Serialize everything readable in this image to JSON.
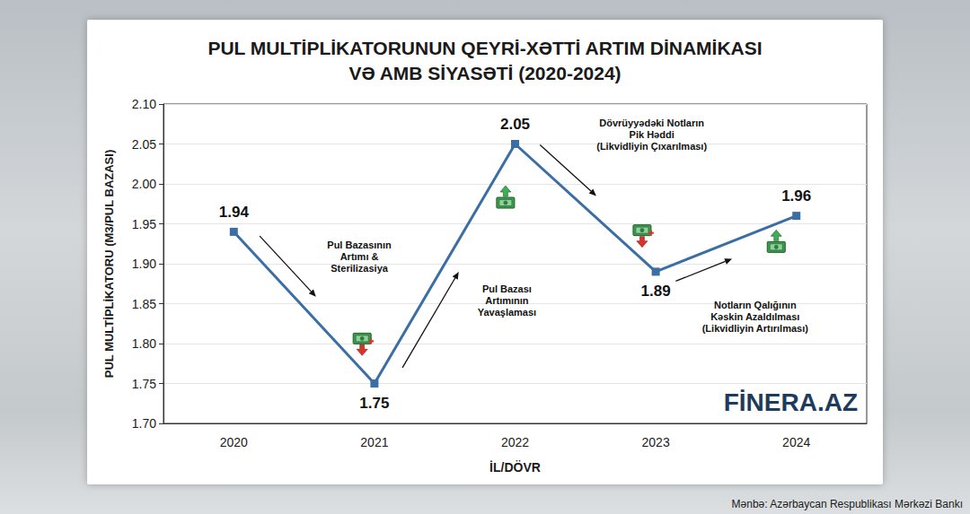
{
  "chart_data": {
    "type": "line",
    "title": "PUL MULTİPLİKATORUNUN QEYRİ-XƏTTİ ARTIM DİNAMİKASI\nVƏ AMB SİYASƏTİ (2020-2024)",
    "x_label": "İL/DÖVR",
    "y_label": "PUL MULTİPLİKATORU (M3/PUL BAZASI)",
    "categories": [
      "2020",
      "2021",
      "2022",
      "2023",
      "2024"
    ],
    "values": [
      1.94,
      1.75,
      2.05,
      1.89,
      1.96
    ],
    "color": "#3a6ea5",
    "marker": "square",
    "data_labels": true,
    "ylim": [
      1.7,
      2.1
    ],
    "yticks": [
      {
        "value": 1.7,
        "label": "1.70"
      },
      1.75,
      {
        "value": 1.8,
        "label": "1.80"
      },
      1.85,
      {
        "value": 1.9,
        "label": "1.90"
      },
      1.95,
      {
        "value": 2.0,
        "label": "2.00"
      },
      2.05,
      {
        "value": 2.1,
        "label": "2.10"
      }
    ],
    "grid": true,
    "annotations": [
      {
        "text": "Pul Bazasının\nArtımı &\nSterilizasiya",
        "category": "2020"
      },
      {
        "text": "Pul Bazası\nArtımının\nYavaşlaması",
        "category": "2021"
      },
      {
        "text": "Dövrüyyədəki Notların\nPik Həddi\n(Likvidliyin Çıxarılması)",
        "category": "2022"
      },
      {
        "text": "Notların Qalığının\nKəskin Azaldılması\n(Likvidliyin Artırılması)",
        "category": "2023"
      }
    ],
    "watermark": "FİNERA.AZ",
    "source": "Mənbə: Azərbaycan Respublikası Mərkəzi Bankı"
  }
}
